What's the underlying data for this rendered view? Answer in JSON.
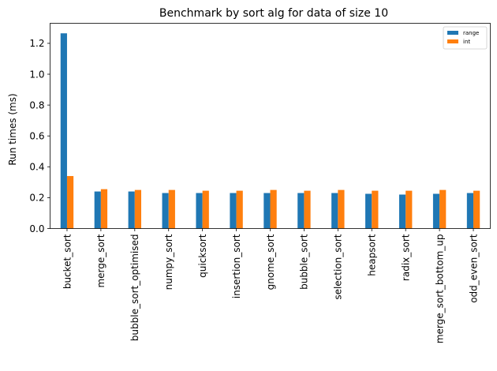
{
  "chart_data": {
    "type": "bar",
    "title": "Benchmark by sort alg for data of size 10",
    "xlabel": "",
    "ylabel": "Run times (ms)",
    "ylim": [
      0,
      1.33
    ],
    "yticks": [
      "0.0",
      "0.2",
      "0.4",
      "0.6",
      "0.8",
      "1.0",
      "1.2"
    ],
    "grid": false,
    "legend_position": "top-right",
    "categories": [
      "bucket_sort",
      "merge_sort",
      "bubble_sort_optimised",
      "numpy_sort",
      "quicksort",
      "insertion_sort",
      "gnome_sort",
      "bubble_sort",
      "selection_sort",
      "heapsort",
      "radix_sort",
      "merge_sort_bottom_up",
      "odd_even_sort"
    ],
    "series": [
      {
        "name": "range",
        "color": "#1f77b4",
        "values": [
          1.265,
          0.24,
          0.24,
          0.23,
          0.23,
          0.23,
          0.23,
          0.23,
          0.23,
          0.225,
          0.22,
          0.225,
          0.23
        ]
      },
      {
        "name": "int",
        "color": "#ff7f0e",
        "values": [
          0.34,
          0.255,
          0.25,
          0.25,
          0.245,
          0.245,
          0.25,
          0.245,
          0.25,
          0.245,
          0.245,
          0.25,
          0.245
        ]
      }
    ]
  }
}
